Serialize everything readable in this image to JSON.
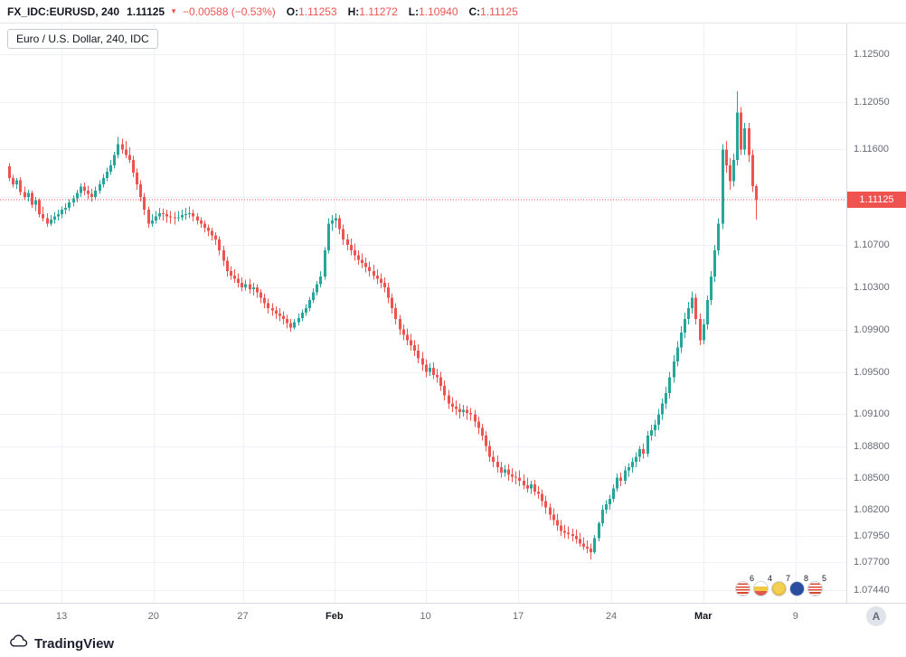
{
  "header": {
    "symbol": "FX_IDC:EURUSD, 240",
    "last_price": "1.11125",
    "direction": "down",
    "change": "−0.00588 (−0.53%)",
    "ohlc": [
      {
        "label": "O:",
        "value": "1.11253"
      },
      {
        "label": "H:",
        "value": "1.11272"
      },
      {
        "label": "L:",
        "value": "1.10940"
      },
      {
        "label": "C:",
        "value": "1.11125"
      }
    ]
  },
  "legend": {
    "title": "Euro / U.S. Dollar, 240, IDC"
  },
  "price_axis": {
    "last_price_badge": "1.11125"
  },
  "time_axis": {
    "auto_button_label": "A"
  },
  "footer": {
    "logo_text": "TradingView"
  },
  "event_flags": [
    {
      "count": "6",
      "flag": "us"
    },
    {
      "count": "4",
      "flag": "stripes-yellow"
    },
    {
      "count": "7",
      "flag": "gold"
    },
    {
      "count": "8",
      "flag": "eu"
    },
    {
      "count": "5",
      "flag": "us"
    }
  ],
  "colors": {
    "up": "#26a69a",
    "down": "#ef5350",
    "grid": "#eef1f6",
    "badge_bg": "#ef5350",
    "axis_text": "#676b77"
  },
  "chart_data": {
    "type": "candlestick",
    "title": "Euro / U.S. Dollar, 240, IDC",
    "symbol": "EURUSD",
    "interval": "240",
    "source": "IDC",
    "price_range": [
      1.0732,
      1.1279
    ],
    "last_price": 1.11125,
    "ohlc_current": {
      "o": 1.11253,
      "h": 1.11272,
      "l": 1.1094,
      "c": 1.11125
    },
    "y_ticks": [
      "1.12500",
      "1.12050",
      "1.11600",
      "1.11150",
      "1.10700",
      "1.10300",
      "1.09900",
      "1.09500",
      "1.09100",
      "1.08800",
      "1.08500",
      "1.08200",
      "1.07950",
      "1.07700",
      "1.07440"
    ],
    "x_ticks": [
      {
        "label": "13",
        "i": 14.0
      },
      {
        "label": "20",
        "i": 38.5
      },
      {
        "label": "27",
        "i": 62.3
      },
      {
        "label": "Feb",
        "i": 86.7,
        "strong": true
      },
      {
        "label": "10",
        "i": 111.0
      },
      {
        "label": "17",
        "i": 135.7
      },
      {
        "label": "24",
        "i": 160.5
      },
      {
        "label": "Mar",
        "i": 185.0,
        "strong": true
      },
      {
        "label": "9",
        "i": 209.6
      }
    ],
    "candles": [
      [
        1.1144,
        1.1147,
        1.113,
        1.1133
      ],
      [
        1.1133,
        1.1136,
        1.1124,
        1.1127
      ],
      [
        1.1127,
        1.1133,
        1.1123,
        1.1131
      ],
      [
        1.1131,
        1.1134,
        1.1117,
        1.112
      ],
      [
        1.112,
        1.1125,
        1.1112,
        1.1115
      ],
      [
        1.1115,
        1.1122,
        1.1111,
        1.1119
      ],
      [
        1.1119,
        1.1121,
        1.1105,
        1.1108
      ],
      [
        1.1108,
        1.1115,
        1.1102,
        1.1112
      ],
      [
        1.1112,
        1.1114,
        1.1096,
        1.1099
      ],
      [
        1.1099,
        1.1106,
        1.1092,
        1.1095
      ],
      [
        1.1095,
        1.11,
        1.1087,
        1.109
      ],
      [
        1.109,
        1.1098,
        1.1088,
        1.1094
      ],
      [
        1.1094,
        1.1101,
        1.109,
        1.1097
      ],
      [
        1.1097,
        1.1103,
        1.1093,
        1.1099
      ],
      [
        1.1099,
        1.1106,
        1.1095,
        1.1103
      ],
      [
        1.1103,
        1.1109,
        1.1099,
        1.1105
      ],
      [
        1.1105,
        1.1113,
        1.1102,
        1.111
      ],
      [
        1.111,
        1.1117,
        1.1106,
        1.1114
      ],
      [
        1.1114,
        1.1122,
        1.111,
        1.1119
      ],
      [
        1.1119,
        1.1128,
        1.1115,
        1.1125
      ],
      [
        1.1125,
        1.1129,
        1.1117,
        1.1121
      ],
      [
        1.1121,
        1.1126,
        1.1113,
        1.1118
      ],
      [
        1.1118,
        1.1123,
        1.1111,
        1.1115
      ],
      [
        1.1115,
        1.1125,
        1.1112,
        1.1121
      ],
      [
        1.1121,
        1.1131,
        1.1118,
        1.1127
      ],
      [
        1.1127,
        1.1137,
        1.1124,
        1.1133
      ],
      [
        1.1133,
        1.1143,
        1.113,
        1.1139
      ],
      [
        1.1139,
        1.115,
        1.1136,
        1.1145
      ],
      [
        1.1145,
        1.1158,
        1.1142,
        1.1155
      ],
      [
        1.1155,
        1.1172,
        1.1152,
        1.1165
      ],
      [
        1.1165,
        1.117,
        1.1156,
        1.116
      ],
      [
        1.116,
        1.1168,
        1.1152,
        1.1155
      ],
      [
        1.1155,
        1.1162,
        1.1147,
        1.115
      ],
      [
        1.115,
        1.1154,
        1.1134,
        1.1138
      ],
      [
        1.1138,
        1.1142,
        1.1122,
        1.1127
      ],
      [
        1.1127,
        1.1131,
        1.1111,
        1.1115
      ],
      [
        1.1115,
        1.1119,
        1.1098,
        1.1103
      ],
      [
        1.1103,
        1.1106,
        1.1086,
        1.109
      ],
      [
        1.109,
        1.1099,
        1.1087,
        1.1093
      ],
      [
        1.1093,
        1.1102,
        1.109,
        1.1097
      ],
      [
        1.1097,
        1.1105,
        1.1094,
        1.11
      ],
      [
        1.11,
        1.1104,
        1.1093,
        1.1099
      ],
      [
        1.1099,
        1.1103,
        1.1091,
        1.1097
      ],
      [
        1.1097,
        1.1102,
        1.109,
        1.1096
      ],
      [
        1.1096,
        1.1101,
        1.1089,
        1.1095
      ],
      [
        1.1095,
        1.1102,
        1.1092,
        1.1096
      ],
      [
        1.1096,
        1.1103,
        1.1093,
        1.1098
      ],
      [
        1.1098,
        1.1105,
        1.1094,
        1.1099
      ],
      [
        1.1099,
        1.1106,
        1.1095,
        1.11
      ],
      [
        1.11,
        1.1103,
        1.1092,
        1.1097
      ],
      [
        1.1097,
        1.11,
        1.1089,
        1.1093
      ],
      [
        1.1093,
        1.1096,
        1.1086,
        1.109
      ],
      [
        1.109,
        1.1093,
        1.1082,
        1.1086
      ],
      [
        1.1086,
        1.1089,
        1.1078,
        1.1083
      ],
      [
        1.1083,
        1.1086,
        1.1074,
        1.1079
      ],
      [
        1.1079,
        1.1082,
        1.107,
        1.1075
      ],
      [
        1.1075,
        1.1078,
        1.106,
        1.1065
      ],
      [
        1.1065,
        1.1069,
        1.105,
        1.1055
      ],
      [
        1.1055,
        1.1059,
        1.104,
        1.1045
      ],
      [
        1.1045,
        1.105,
        1.1037,
        1.1041
      ],
      [
        1.1041,
        1.1047,
        1.1034,
        1.1038
      ],
      [
        1.1038,
        1.1043,
        1.103,
        1.1034
      ],
      [
        1.1034,
        1.1039,
        1.1026,
        1.103
      ],
      [
        1.103,
        1.1037,
        1.1027,
        1.1033
      ],
      [
        1.1033,
        1.1038,
        1.1024,
        1.1028
      ],
      [
        1.1028,
        1.1034,
        1.1022,
        1.103
      ],
      [
        1.103,
        1.1033,
        1.102,
        1.1025
      ],
      [
        1.1025,
        1.1028,
        1.1015,
        1.102
      ],
      [
        1.102,
        1.1024,
        1.101,
        1.1015
      ],
      [
        1.1015,
        1.1019,
        1.1005,
        1.101
      ],
      [
        1.101,
        1.1015,
        1.1003,
        1.1008
      ],
      [
        1.1008,
        1.1012,
        1.1,
        1.1005
      ],
      [
        1.1005,
        1.101,
        1.0998,
        1.1003
      ],
      [
        1.1003,
        1.1007,
        1.0995,
        1.1
      ],
      [
        1.1,
        1.1004,
        1.0991,
        1.0996
      ],
      [
        1.0996,
        1.1,
        1.0988,
        1.0992
      ],
      [
        1.0992,
        1.1,
        1.099,
        1.0997
      ],
      [
        1.0997,
        1.1005,
        1.0994,
        1.1001
      ],
      [
        1.1001,
        1.1009,
        1.0998,
        1.1006
      ],
      [
        1.1006,
        1.1014,
        1.1003,
        1.101
      ],
      [
        1.101,
        1.1021,
        1.1007,
        1.1018
      ],
      [
        1.1018,
        1.1029,
        1.1015,
        1.1025
      ],
      [
        1.1025,
        1.1036,
        1.1022,
        1.1033
      ],
      [
        1.1033,
        1.1045,
        1.103,
        1.104
      ],
      [
        1.104,
        1.1068,
        1.1037,
        1.1065
      ],
      [
        1.1065,
        1.1095,
        1.1062,
        1.109
      ],
      [
        1.109,
        1.1098,
        1.1083,
        1.1093
      ],
      [
        1.1093,
        1.11,
        1.1086,
        1.1095
      ],
      [
        1.1095,
        1.1098,
        1.108,
        1.1085
      ],
      [
        1.1085,
        1.1089,
        1.107,
        1.1075
      ],
      [
        1.1075,
        1.108,
        1.1065,
        1.107
      ],
      [
        1.107,
        1.1076,
        1.106,
        1.1065
      ],
      [
        1.1065,
        1.1071,
        1.1055,
        1.106
      ],
      [
        1.106,
        1.1065,
        1.1051,
        1.1056
      ],
      [
        1.1056,
        1.1062,
        1.1048,
        1.1053
      ],
      [
        1.1053,
        1.1058,
        1.1044,
        1.1049
      ],
      [
        1.1049,
        1.1054,
        1.104,
        1.1045
      ],
      [
        1.1045,
        1.1051,
        1.1037,
        1.1041
      ],
      [
        1.1041,
        1.1047,
        1.1033,
        1.1038
      ],
      [
        1.1038,
        1.1043,
        1.1029,
        1.1034
      ],
      [
        1.1034,
        1.1039,
        1.1025,
        1.103
      ],
      [
        1.103,
        1.1034,
        1.1015,
        1.102
      ],
      [
        1.102,
        1.1024,
        1.1005,
        1.101
      ],
      [
        1.101,
        1.1015,
        1.0995,
        1.1
      ],
      [
        1.1,
        1.1004,
        1.0985,
        1.099
      ],
      [
        1.099,
        1.0995,
        1.098,
        1.0985
      ],
      [
        1.0985,
        1.0991,
        1.0975,
        1.098
      ],
      [
        1.098,
        1.0986,
        1.097,
        1.0975
      ],
      [
        1.0975,
        1.098,
        1.0965,
        1.097
      ],
      [
        1.097,
        1.0976,
        1.0958,
        1.0963
      ],
      [
        1.0963,
        1.0969,
        1.0951,
        1.0957
      ],
      [
        1.0957,
        1.0962,
        1.0945,
        1.095
      ],
      [
        1.095,
        1.0958,
        1.0946,
        1.0954
      ],
      [
        1.0954,
        1.0959,
        1.0943,
        1.0947
      ],
      [
        1.0947,
        1.0953,
        1.094,
        1.0945
      ],
      [
        1.0945,
        1.095,
        1.0932,
        1.0937
      ],
      [
        1.0937,
        1.0942,
        1.0923,
        1.0928
      ],
      [
        1.0928,
        1.0933,
        1.0915,
        1.092
      ],
      [
        1.092,
        1.0926,
        1.0912,
        1.0917
      ],
      [
        1.0917,
        1.0923,
        1.0909,
        1.0915
      ],
      [
        1.0915,
        1.092,
        1.0906,
        1.0912
      ],
      [
        1.0912,
        1.0919,
        1.0908,
        1.0914
      ],
      [
        1.0914,
        1.0918,
        1.0905,
        1.0911
      ],
      [
        1.0911,
        1.0916,
        1.0904,
        1.091
      ],
      [
        1.091,
        1.0914,
        1.0898,
        1.0903
      ],
      [
        1.0903,
        1.0908,
        1.0891,
        1.0897
      ],
      [
        1.0897,
        1.0901,
        1.0885,
        1.089
      ],
      [
        1.089,
        1.0894,
        1.0875,
        1.088
      ],
      [
        1.088,
        1.0885,
        1.0865,
        1.087
      ],
      [
        1.087,
        1.0876,
        1.086,
        1.0865
      ],
      [
        1.0865,
        1.0871,
        1.0855,
        1.086
      ],
      [
        1.086,
        1.0865,
        1.085,
        1.0855
      ],
      [
        1.0855,
        1.0862,
        1.0851,
        1.0858
      ],
      [
        1.0858,
        1.0863,
        1.0847,
        1.0853
      ],
      [
        1.0853,
        1.0859,
        1.0846,
        1.0851
      ],
      [
        1.0851,
        1.0856,
        1.0844,
        1.085
      ],
      [
        1.085,
        1.0857,
        1.0842,
        1.0847
      ],
      [
        1.0847,
        1.0853,
        1.0839,
        1.0843
      ],
      [
        1.0843,
        1.085,
        1.0836,
        1.084
      ],
      [
        1.084,
        1.0847,
        1.0835,
        1.0844
      ],
      [
        1.0844,
        1.0848,
        1.0833,
        1.0837
      ],
      [
        1.0837,
        1.0842,
        1.083,
        1.0835
      ],
      [
        1.0835,
        1.0839,
        1.0823,
        1.0828
      ],
      [
        1.0828,
        1.0833,
        1.0816,
        1.0822
      ],
      [
        1.0822,
        1.0826,
        1.081,
        1.0815
      ],
      [
        1.0815,
        1.0821,
        1.0805,
        1.081
      ],
      [
        1.081,
        1.0816,
        1.08,
        1.0805
      ],
      [
        1.0805,
        1.081,
        1.0795,
        1.08
      ],
      [
        1.08,
        1.0806,
        1.0793,
        1.0798
      ],
      [
        1.0798,
        1.0804,
        1.0792,
        1.0797
      ],
      [
        1.0797,
        1.0802,
        1.079,
        1.0795
      ],
      [
        1.0795,
        1.0801,
        1.0788,
        1.0792
      ],
      [
        1.0792,
        1.0798,
        1.0785,
        1.0788
      ],
      [
        1.0788,
        1.0794,
        1.0782,
        1.0785
      ],
      [
        1.0785,
        1.0791,
        1.0779,
        1.0783
      ],
      [
        1.0783,
        1.0788,
        1.0773,
        1.078
      ],
      [
        1.078,
        1.0796,
        1.0778,
        1.0793
      ],
      [
        1.0793,
        1.0809,
        1.079,
        1.0807
      ],
      [
        1.0807,
        1.0824,
        1.0804,
        1.082
      ],
      [
        1.082,
        1.0829,
        1.0816,
        1.0825
      ],
      [
        1.0825,
        1.0834,
        1.082,
        1.083
      ],
      [
        1.083,
        1.0844,
        1.0827,
        1.084
      ],
      [
        1.084,
        1.0854,
        1.0837,
        1.085
      ],
      [
        1.085,
        1.0855,
        1.0842,
        1.0847
      ],
      [
        1.0847,
        1.0861,
        1.0844,
        1.0857
      ],
      [
        1.0857,
        1.0864,
        1.0851,
        1.086
      ],
      [
        1.086,
        1.0869,
        1.0855,
        1.0865
      ],
      [
        1.0865,
        1.0874,
        1.086,
        1.087
      ],
      [
        1.087,
        1.088,
        1.0865,
        1.0877
      ],
      [
        1.0877,
        1.0882,
        1.0868,
        1.0873
      ],
      [
        1.0873,
        1.0894,
        1.087,
        1.089
      ],
      [
        1.089,
        1.09,
        1.0885,
        1.0895
      ],
      [
        1.0895,
        1.0905,
        1.0889,
        1.09
      ],
      [
        1.09,
        1.0915,
        1.0895,
        1.091
      ],
      [
        1.091,
        1.0925,
        1.0905,
        1.092
      ],
      [
        1.092,
        1.0936,
        1.0915,
        1.093
      ],
      [
        1.093,
        1.095,
        1.0925,
        1.0945
      ],
      [
        1.0945,
        1.0966,
        1.094,
        1.096
      ],
      [
        1.096,
        1.0979,
        1.0955,
        1.0973
      ],
      [
        1.0973,
        1.0993,
        1.0968,
        1.0987
      ],
      [
        1.0987,
        1.1006,
        1.0982,
        1.1
      ],
      [
        1.1,
        1.1016,
        1.0995,
        1.101
      ],
      [
        1.101,
        1.1026,
        1.1005,
        1.102
      ],
      [
        1.102,
        1.1024,
        1.0995,
        1.1
      ],
      [
        1.1,
        1.1005,
        1.0975,
        1.098
      ],
      [
        1.098,
        1.1,
        1.0976,
        1.0995
      ],
      [
        1.0995,
        1.1022,
        1.099,
        1.1018
      ],
      [
        1.1018,
        1.1045,
        1.1013,
        1.104
      ],
      [
        1.104,
        1.107,
        1.1035,
        1.1065
      ],
      [
        1.1065,
        1.1095,
        1.106,
        1.109
      ],
      [
        1.109,
        1.1165,
        1.1085,
        1.116
      ],
      [
        1.116,
        1.1168,
        1.1138,
        1.1145
      ],
      [
        1.1145,
        1.1152,
        1.1122,
        1.113
      ],
      [
        1.113,
        1.1156,
        1.1125,
        1.115
      ],
      [
        1.115,
        1.1215,
        1.1145,
        1.1195
      ],
      [
        1.1195,
        1.12,
        1.1155,
        1.116
      ],
      [
        1.116,
        1.1185,
        1.1155,
        1.118
      ],
      [
        1.118,
        1.1185,
        1.1148,
        1.1155
      ],
      [
        1.1155,
        1.116,
        1.112,
        1.11253
      ],
      [
        1.11253,
        1.11272,
        1.1094,
        1.11125
      ]
    ]
  }
}
